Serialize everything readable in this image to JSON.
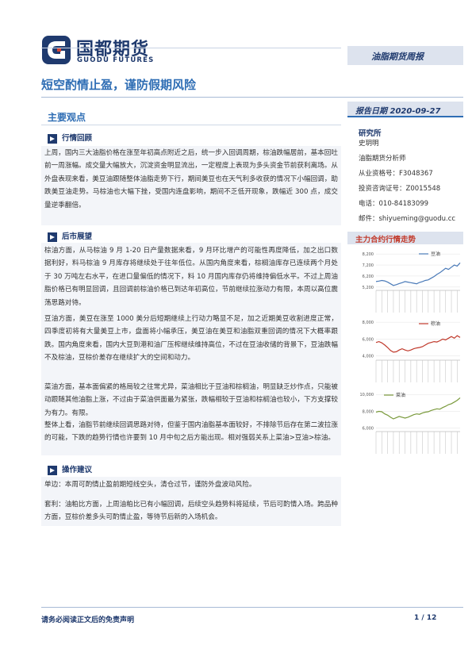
{
  "header": {
    "logo_cn": "国都期货",
    "logo_en": "GUODU FUTURES",
    "report_type": "油脂期货周报"
  },
  "title": "短空酌情止盈，谨防假期风险",
  "main_points": {
    "heading": "主要观点",
    "sections": [
      {
        "heading": "行情回顾",
        "paragraphs": [
          "上周，国内三大油脂价格在涨至年初高点附近之后，统一步入回调周期，棕油跌幅居前，基本回吐前一周涨幅。成交量大幅放大，沉淀资金明显流出，一定程度上表现为多头资金节前获利离场。从外盘表现来看，美豆油跟随整体油脂走势下行，期间美豆也在天气利多收获的情况下小幅回调，助跌美豆油走势。马棕油也大幅下挫，受国内连盘影响，期间不乏低开现象，跌幅近 300 点，成交量逆季翻倍。"
        ]
      },
      {
        "heading": "后市展望",
        "paragraphs": [
          "棕油方面，从马棕油 9 月 1-20 日产量数据来看，9 月环比增产的可能性再度降低，加之出口数据利好，料马棕油 9 月库存将继续处于往年低位。从国内角度来看，棕榈油库存已连续两个月处于 30 万吨左右水平，在进口量偏低的情况下，料 10 月国内库存仍将维持偏低水平。不过上周油脂价格已有明显回调，且回调前棕油价格已到达年初高位，节前继续拉涨动力有限，本周以高位震荡思路对待。",
          "豆油方面，美豆在涨至 1000 美分后短期继续上行动力略显不足，加之近期美豆收割进度正常，四季度初将有大量美豆上市，盘面将小幅承压，美豆油在美豆和油脂双重回调的情况下大概率跟跌。国内角度来看，国内大豆到港和油厂压榨继续维持高位，不过在豆油收储的背景下，豆油跌幅不及棕油，豆棕价差存在继续扩大的空间和动力。",
          "菜油方面，基本面偏紧的格局较之往常尤异，菜油相比于豆油和棕榈油，明显缺乏炒作点，只能被动跟随其他油脂上涨，不过由于菜油供面最为紧张，跌幅相较于豆油和棕榈油也较小，下方支撑较为有力。有限。",
          "整体上看，油脂节前继续回调思路对待，但鉴于国内油脂基本面较好，不排除节后存在第二波拉涨的可能，下跌的趋势行情也许要到 10 月中旬之后方能出现。相对强弱关系上菜油>豆油>棕油。"
        ]
      },
      {
        "heading": "操作建议",
        "paragraphs": [
          "单边：本周可酌情止盈前期短线空头，清仓过节，谨防外盘波动风险。",
          "套利：油粕比方面，上周油粕比已有小幅回调，后续空头趋势料将延续，节后可酌情入场。跨品种方面，豆棕价差多头可酌情止盈，等待节后新的入场机会。"
        ]
      }
    ]
  },
  "sidebar": {
    "date_label": "报告日期 2020-09-27",
    "institute_heading": "研究所",
    "analyst_lines": [
      "史玥明",
      "油脂期货分析师",
      "从业资格号：F3048367",
      "投资咨询证号：Z0015548",
      "电话：010-84183099",
      "邮件：shiyueming@guodu.cc"
    ],
    "charts_heading": "主力合约行情走势"
  },
  "chart_data": [
    {
      "type": "line",
      "series": [
        {
          "name": "豆油",
          "color": "#4a7ab8",
          "values": [
            5700,
            5740,
            5800,
            5760,
            5650,
            5500,
            5350,
            5420,
            5520,
            5600,
            5700,
            5650,
            5600,
            5550,
            5500,
            5620,
            5700,
            5800,
            5850,
            6000,
            6150,
            6350,
            6500,
            6700,
            6900,
            6800,
            7000,
            7200,
            7100,
            7400
          ]
        }
      ],
      "yticks": [
        5200,
        6200,
        7200,
        8200
      ],
      "ylim": [
        4900,
        8500
      ],
      "xlabel": "",
      "ylabel": ""
    },
    {
      "type": "line",
      "series": [
        {
          "name": "棕油",
          "color": "#c0392b",
          "values": [
            5600,
            5700,
            5550,
            5300,
            5000,
            4650,
            4450,
            4500,
            4700,
            4850,
            4700,
            4600,
            4700,
            4850,
            4950,
            5000,
            5100,
            5300,
            5500,
            5600,
            5700,
            5650,
            5800,
            6000,
            5900,
            6100,
            6300,
            6100,
            6400,
            6200
          ]
        }
      ],
      "yticks": [
        4000,
        6000,
        8000
      ],
      "ylim": [
        3500,
        8200
      ],
      "xlabel": "",
      "ylabel": ""
    },
    {
      "type": "line",
      "series": [
        {
          "name": "菜油",
          "color": "#7a9a3c",
          "values": [
            7900,
            8000,
            7950,
            7700,
            7550,
            7300,
            7100,
            7250,
            7400,
            7300,
            7200,
            7300,
            7450,
            7600,
            7700,
            7650,
            7800,
            7900,
            7950,
            8100,
            8200,
            8300,
            8250,
            8450,
            8600,
            8800,
            8900,
            9100,
            9300,
            9600
          ]
        }
      ],
      "yticks": [
        6000,
        8000,
        10000
      ],
      "ylim": [
        5600,
        10300
      ],
      "xlabel": "",
      "ylabel": ""
    }
  ],
  "footer": {
    "disclaimer": "请务必阅读正文后的免责声明",
    "page": "1 / 12"
  }
}
